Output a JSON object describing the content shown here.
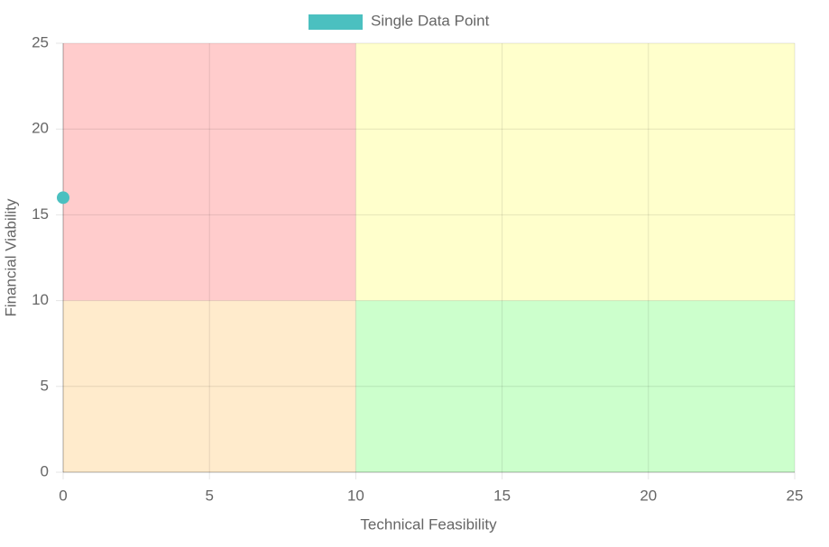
{
  "chart_data": {
    "type": "scatter",
    "series": [
      {
        "name": "Single Data Point",
        "color": "#4bc0c0",
        "x": [
          0
        ],
        "values": [
          16
        ]
      }
    ],
    "quadrants": [
      {
        "xlim": [
          0,
          10
        ],
        "ylim": [
          10,
          25
        ],
        "color": "#ffcccc"
      },
      {
        "xlim": [
          10,
          25
        ],
        "ylim": [
          10,
          25
        ],
        "color": "#ffffcc"
      },
      {
        "xlim": [
          0,
          10
        ],
        "ylim": [
          0,
          10
        ],
        "color": "#ffebcc"
      },
      {
        "xlim": [
          10,
          25
        ],
        "ylim": [
          0,
          10
        ],
        "color": "#ccffcc"
      }
    ],
    "x_label": "Technical Feasibility",
    "y_label": "Financial Viability",
    "xlim": [
      0,
      25
    ],
    "xticks": [
      0,
      5,
      10,
      15,
      20,
      25
    ],
    "ylim": [
      0,
      25
    ],
    "yticks": [
      0,
      5,
      10,
      15,
      20,
      25
    ],
    "grid": true,
    "legend": "top"
  }
}
